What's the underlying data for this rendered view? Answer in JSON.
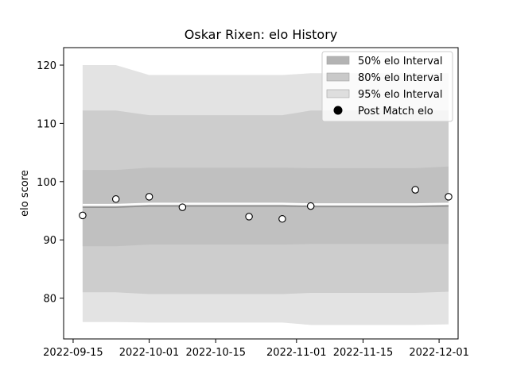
{
  "chart_data": {
    "type": "scatter",
    "title": "Oskar Rixen: elo History",
    "xlabel": "",
    "ylabel": "elo score",
    "xlim": [
      "2022-09-13",
      "2022-12-05"
    ],
    "ylim": [
      73,
      123
    ],
    "x_ticks": [
      "2022-09-15",
      "2022-10-01",
      "2022-10-15",
      "2022-11-01",
      "2022-11-15",
      "2022-12-01"
    ],
    "y_ticks": [
      80,
      90,
      100,
      110,
      120
    ],
    "grid": false,
    "legend_position": "top-right",
    "intervals": [
      {
        "name": "95% elo Interval",
        "color": "#e3e3e3",
        "x": [
          "2022-09-17",
          "2022-09-24",
          "2022-10-01",
          "2022-10-08",
          "2022-10-22",
          "2022-10-29",
          "2022-11-04",
          "2022-11-26",
          "2022-12-03"
        ],
        "upper": [
          120.0,
          120.0,
          118.3,
          118.3,
          118.3,
          118.3,
          118.6,
          118.6,
          118.6
        ],
        "lower": [
          75.9,
          75.9,
          75.8,
          75.8,
          75.8,
          75.8,
          75.4,
          75.4,
          75.5
        ]
      },
      {
        "name": "80% elo Interval",
        "color": "#cdcdcd",
        "x": [
          "2022-09-17",
          "2022-09-24",
          "2022-10-01",
          "2022-10-08",
          "2022-10-22",
          "2022-10-29",
          "2022-11-04",
          "2022-11-26",
          "2022-12-03"
        ],
        "upper": [
          112.2,
          112.2,
          111.4,
          111.4,
          111.4,
          111.4,
          112.2,
          112.2,
          112.2
        ],
        "lower": [
          81.0,
          81.0,
          80.7,
          80.7,
          80.7,
          80.7,
          80.9,
          80.9,
          81.1
        ]
      },
      {
        "name": "50% elo Interval",
        "color": "#c0c0c0",
        "x": [
          "2022-09-17",
          "2022-09-24",
          "2022-10-01",
          "2022-10-08",
          "2022-10-22",
          "2022-10-29",
          "2022-11-04",
          "2022-11-26",
          "2022-12-03"
        ],
        "upper": [
          102.0,
          102.0,
          102.4,
          102.4,
          102.4,
          102.4,
          102.3,
          102.3,
          102.6
        ],
        "lower": [
          88.9,
          88.9,
          89.2,
          89.2,
          89.2,
          89.2,
          89.3,
          89.3,
          89.3
        ]
      }
    ],
    "mean_line": {
      "x": [
        "2022-09-17",
        "2022-09-24",
        "2022-10-01",
        "2022-10-08",
        "2022-10-22",
        "2022-10-29",
        "2022-11-04",
        "2022-11-26",
        "2022-12-03"
      ],
      "values": [
        95.6,
        95.6,
        95.8,
        95.8,
        95.8,
        95.8,
        95.7,
        95.7,
        95.8
      ]
    },
    "series": [
      {
        "name": "Post Match elo",
        "x": [
          "2022-09-17",
          "2022-09-24",
          "2022-10-01",
          "2022-10-08",
          "2022-10-22",
          "2022-10-29",
          "2022-11-04",
          "2022-11-26",
          "2022-12-03"
        ],
        "values": [
          94.2,
          97.0,
          97.4,
          95.6,
          94.0,
          93.6,
          95.8,
          98.6,
          97.4
        ]
      }
    ],
    "legend": [
      "50% elo Interval",
      "80% elo Interval",
      "95% elo Interval",
      "Post Match elo"
    ]
  }
}
